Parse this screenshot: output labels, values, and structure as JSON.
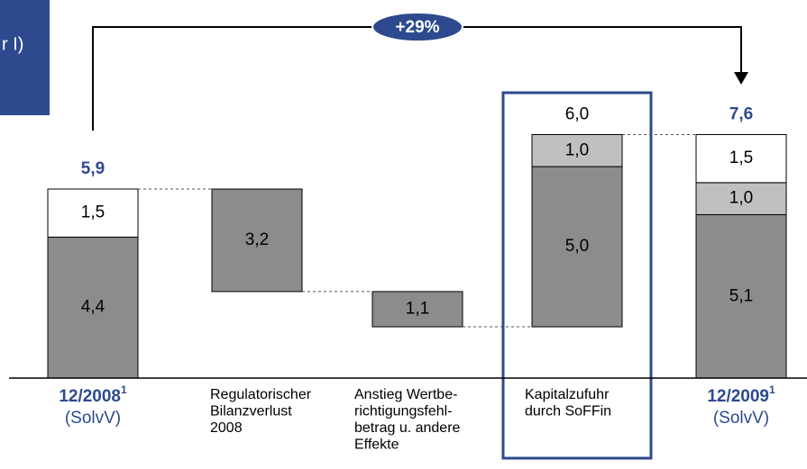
{
  "header_fragment": "r I)",
  "chart_data": {
    "type": "waterfall",
    "categories": [
      [
        "12/2008",
        "(SolvV)"
      ],
      [
        "Regulatorischer",
        "Bilanzverlust",
        "2008"
      ],
      [
        "Anstieg Wertbe-",
        "richtigungsfehl-",
        "betrag u. andere",
        "Effekte"
      ],
      [
        "Kapitalzufuhr",
        "durch SoFFin"
      ],
      [
        "12/2009",
        "(SolvV)"
      ]
    ],
    "category_notes": [
      "1",
      null,
      null,
      null,
      "1"
    ],
    "measure": [
      "total",
      "decrease",
      "decrease",
      "increase",
      "total"
    ],
    "emphasis": [
      true,
      false,
      false,
      false,
      true
    ],
    "boxed": [
      false,
      false,
      false,
      true,
      false
    ],
    "series": [
      {
        "color": "#8c8c8c",
        "values": [
          4.4,
          3.2,
          1.1,
          5.0,
          5.1
        ],
        "value_labels": [
          "4,4",
          "3,2",
          "1,1",
          "5,0",
          "5,1"
        ]
      },
      {
        "color": "#c0c0c0",
        "values": [
          null,
          null,
          null,
          1.0,
          1.0
        ],
        "value_labels": [
          null,
          null,
          null,
          "1,0",
          "1,0"
        ]
      },
      {
        "color": "#ffffff",
        "values": [
          1.5,
          null,
          null,
          null,
          1.5
        ],
        "value_labels": [
          "1,5",
          null,
          null,
          null,
          "1,5"
        ]
      }
    ],
    "totals": [
      5.9,
      null,
      null,
      6.0,
      7.6
    ],
    "total_labels": [
      "5,9",
      null,
      null,
      "6,0",
      "7,6"
    ],
    "annotation": {
      "value": 29,
      "label": "+29%"
    },
    "ylim": [
      0,
      11.8
    ],
    "accent_color": "#2d4a8e"
  }
}
